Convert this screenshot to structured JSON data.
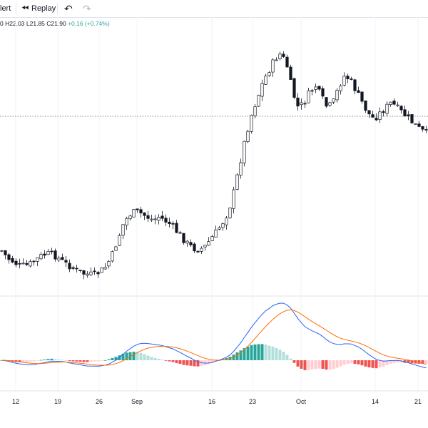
{
  "toolbar": {
    "alert_label": "lert",
    "replay_label": "Replay",
    "replay_icon": "rewind-icon",
    "undo_icon": "undo-icon",
    "redo_icon": "redo-icon"
  },
  "legend": {
    "open_fragment": "0",
    "high": "H22.03",
    "low": "L21.85",
    "close": "C21.90",
    "change": "+0.16 (+0.74%)"
  },
  "colors": {
    "up": "#26a69a",
    "up_light": "#b2dfdb",
    "down": "#ef5350",
    "down_light": "#ffcdd2",
    "candle_border": "#131722",
    "macd_line": "#2962ff",
    "signal_line": "#ff6d00"
  },
  "chart_data": [
    {
      "type": "candlestick",
      "title": "",
      "x_tick_labels": [
        "12",
        "19",
        "26",
        "Sep",
        "16",
        "23",
        "Oct",
        "14",
        "21"
      ],
      "price_line": "horizontal dotted line at last close",
      "visible_last_ohlc": {
        "high": 22.03,
        "low": 21.85,
        "close": 21.9,
        "change": 0.16,
        "change_pct": 0.74
      },
      "series_close_shape": [
        0.24,
        0.17,
        0.14,
        0.1,
        0.1,
        0.12,
        0.16,
        0.2,
        0.21,
        0.2,
        0.16,
        0.12,
        0.09,
        0.05,
        0.03,
        0.02,
        0.02,
        0.05,
        0.1,
        0.2,
        0.35,
        0.5,
        0.57,
        0.6,
        0.58,
        0.55,
        0.52,
        0.55,
        0.52,
        0.48,
        0.42,
        0.36,
        0.3,
        0.26,
        0.25,
        0.28,
        0.35,
        0.42,
        0.5,
        0.6,
        0.8,
        1.05,
        1.3,
        1.5,
        1.65,
        1.8,
        1.9,
        2.0,
        2.05,
        1.95,
        1.7,
        1.55,
        1.6,
        1.7,
        1.75,
        1.65,
        1.55,
        1.6,
        1.75,
        1.85,
        1.8,
        1.7,
        1.6,
        1.5,
        1.45,
        1.5,
        1.55,
        1.6,
        1.55,
        1.5,
        1.45,
        1.4,
        1.35,
        1.32
      ]
    },
    {
      "type": "macd",
      "series": [
        {
          "name": "",
          "kind": "histogram"
        },
        {
          "name": "",
          "kind": "line"
        },
        {
          "name": "",
          "kind": "line"
        }
      ]
    }
  ]
}
